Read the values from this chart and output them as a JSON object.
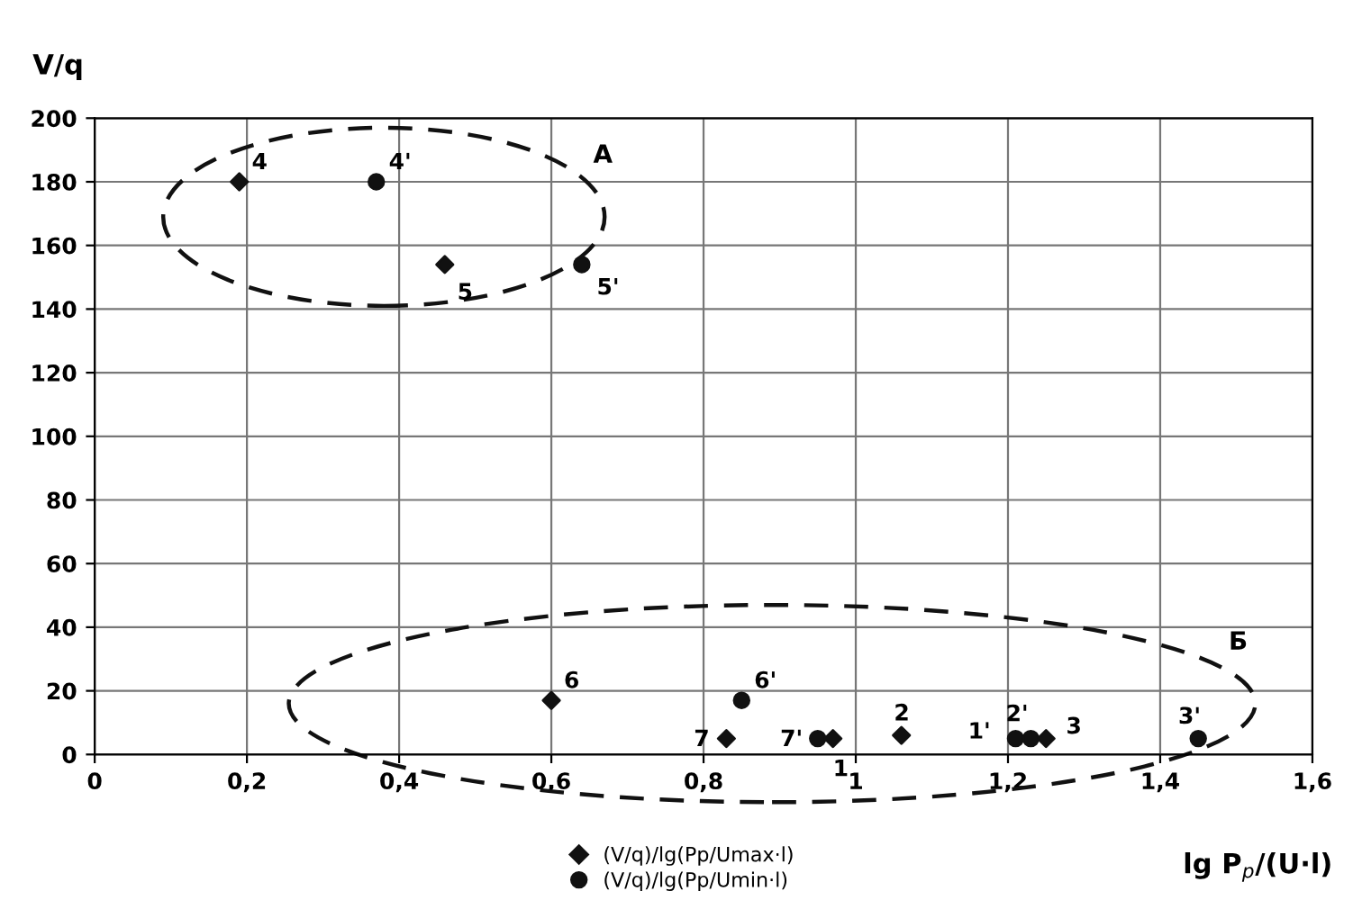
{
  "chart_data": {
    "type": "scatter",
    "xlabel": "lg P$_{p}$/(U·l)",
    "ylabel": "V/q",
    "series": [
      {
        "name": "(V/q)/lg(Pp/Umax·l)",
        "color": "#111111",
        "marker": "diamond",
        "x": [
          0.97,
          1.06,
          1.25,
          0.19,
          0.46,
          0.6,
          0.83
        ],
        "values": [
          5,
          6,
          5,
          180,
          154,
          17,
          5
        ]
      },
      {
        "name": "(V/q)/lg(Pp/Umin·l)",
        "color": "#111111",
        "marker": "circle",
        "x": [
          1.21,
          1.23,
          1.45,
          0.37,
          0.64,
          0.85,
          0.95
        ],
        "values": [
          5,
          5,
          5,
          180,
          154,
          17,
          5
        ]
      }
    ],
    "annotations": [
      {
        "text": "1",
        "x": 0.97,
        "y": 5
      },
      {
        "text": "2",
        "x": 1.06,
        "y": 6
      },
      {
        "text": "3",
        "x": 1.25,
        "y": 5
      },
      {
        "text": "4",
        "x": 0.19,
        "y": 180
      },
      {
        "text": "5",
        "x": 0.46,
        "y": 154
      },
      {
        "text": "6",
        "x": 0.6,
        "y": 17
      },
      {
        "text": "7",
        "x": 0.83,
        "y": 5
      },
      {
        "text": "1'",
        "x": 1.21,
        "y": 5
      },
      {
        "text": "2'",
        "x": 1.23,
        "y": 5
      },
      {
        "text": "3'",
        "x": 1.45,
        "y": 5
      },
      {
        "text": "4'",
        "x": 0.37,
        "y": 180
      },
      {
        "text": "5'",
        "x": 0.64,
        "y": 154
      },
      {
        "text": "6'",
        "x": 0.85,
        "y": 17
      },
      {
        "text": "7'",
        "x": 0.95,
        "y": 5
      },
      "А",
      "Б"
    ],
    "xlim": [
      0,
      1.6
    ],
    "ylim": [
      0,
      200
    ],
    "xticks": [
      0,
      {
        "value": 0.2,
        "label": "0,2"
      },
      {
        "value": 0.4,
        "label": "0,4"
      },
      {
        "value": 0.6,
        "label": "0,6"
      },
      {
        "value": 0.8,
        "label": "0,8"
      },
      1,
      {
        "value": 1.2,
        "label": "1,2"
      },
      {
        "value": 1.4,
        "label": "1,4"
      },
      {
        "value": 1.6,
        "label": "1,6"
      }
    ],
    "yticks": [
      0,
      20,
      40,
      60,
      80,
      100,
      120,
      140,
      160,
      180,
      200
    ],
    "grid": true,
    "legend": "bottom"
  }
}
